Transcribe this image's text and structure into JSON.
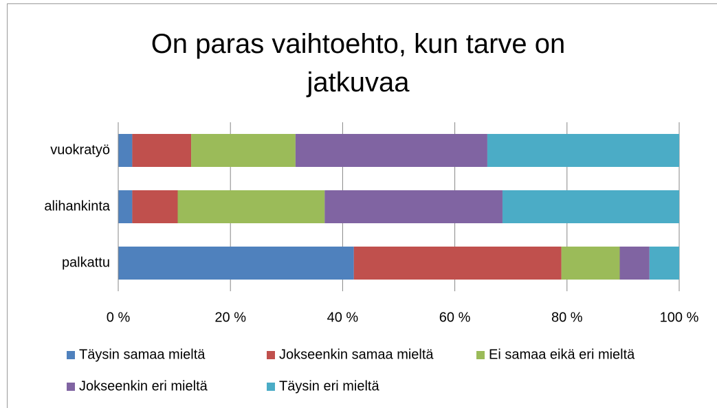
{
  "chart_data": {
    "type": "stacked_bar_horizontal",
    "title": "On paras vaihtoehto, kun tarve on jatkuvaa",
    "categories": [
      "vuokratyö",
      "alihankinta",
      "palkattu"
    ],
    "series": [
      {
        "name": "Täysin samaa mieltä",
        "color": "#4f81bd",
        "values": [
          2.5,
          2.5,
          42.0
        ]
      },
      {
        "name": "Jokseenkin samaa mieltä",
        "color": "#c0504d",
        "values": [
          10.5,
          8.1,
          37.0
        ]
      },
      {
        "name": "Ei samaa eikä eri mieltä",
        "color": "#9bbb59",
        "values": [
          18.6,
          26.2,
          10.4
        ]
      },
      {
        "name": "Jokseenkin eri mieltä",
        "color": "#8064a2",
        "values": [
          34.2,
          31.7,
          5.3
        ]
      },
      {
        "name": "Täysin eri mieltä",
        "color": "#4bacc6",
        "values": [
          34.2,
          31.5,
          5.3
        ]
      }
    ],
    "xlim": [
      0,
      100
    ],
    "xticks": [
      {
        "value": 0,
        "label": "0 %"
      },
      {
        "value": 20,
        "label": "20 %"
      },
      {
        "value": 40,
        "label": "40 %"
      },
      {
        "value": 60,
        "label": "60 %"
      },
      {
        "value": 80,
        "label": "80 %"
      },
      {
        "value": 100,
        "label": "100 %"
      }
    ],
    "grid": true,
    "legend": "bottom"
  }
}
